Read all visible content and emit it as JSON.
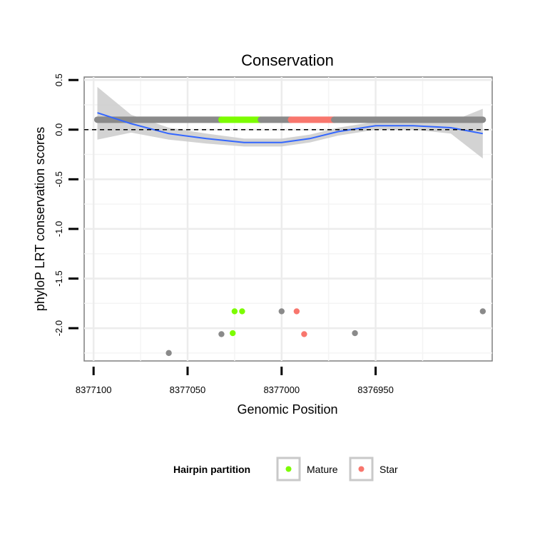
{
  "chart_data": {
    "type": "scatter",
    "title": "Conservation",
    "xlabel": "Genomic Position",
    "ylabel": "phyloP LRT conservation scores",
    "x_reversed": true,
    "xlim": [
      8377105,
      8376888
    ],
    "ylim": [
      -2.33,
      0.53
    ],
    "x_ticks": [
      8377100,
      8377050,
      8377000,
      8376950
    ],
    "x_tick_labels": [
      "8377100",
      "8377050",
      "8377000",
      "8376950"
    ],
    "y_ticks": [
      0.5,
      0.0,
      -0.5,
      -1.0,
      -1.5,
      -2.0
    ],
    "y_tick_labels": [
      "0.5",
      "0.0",
      "-0.5",
      "-1.0",
      "-1.5",
      "-2.0"
    ],
    "reference_line_y": 0.0,
    "grid": true,
    "legend": {
      "title": "Hairpin partition",
      "position": "bottom",
      "entries": [
        {
          "label": "Mature",
          "color": "#7cfc00"
        },
        {
          "label": "Star",
          "color": "#f8766d"
        }
      ]
    },
    "colors": {
      "other": "#8a8a8a",
      "Mature": "#7cfc00",
      "Star": "#f8766d",
      "smooth": "#3366ff",
      "ribbon": "#c8c8c8"
    },
    "conserved_band": {
      "y": 0.1,
      "segments": [
        {
          "partition": "other",
          "x_from": 8377098,
          "x_to": 8377032
        },
        {
          "partition": "Mature",
          "x_from": 8377032,
          "x_to": 8377011
        },
        {
          "partition": "other",
          "x_from": 8377011,
          "x_to": 8376995
        },
        {
          "partition": "Star",
          "x_from": 8376995,
          "x_to": 8376972
        },
        {
          "partition": "other",
          "x_from": 8376972,
          "x_to": 8376893
        }
      ]
    },
    "points": [
      {
        "x": 8377060,
        "y": -2.25,
        "partition": "other"
      },
      {
        "x": 8377032,
        "y": -2.06,
        "partition": "other"
      },
      {
        "x": 8377026,
        "y": -2.05,
        "partition": "Mature"
      },
      {
        "x": 8377025,
        "y": -1.83,
        "partition": "Mature"
      },
      {
        "x": 8377021,
        "y": -1.83,
        "partition": "Mature"
      },
      {
        "x": 8377000,
        "y": -1.83,
        "partition": "other"
      },
      {
        "x": 8376992,
        "y": -1.83,
        "partition": "Star"
      },
      {
        "x": 8376988,
        "y": -2.06,
        "partition": "Star"
      },
      {
        "x": 8376961,
        "y": -2.05,
        "partition": "other"
      },
      {
        "x": 8376893,
        "y": -1.83,
        "partition": "other"
      }
    ],
    "smooth": {
      "x": [
        8377098,
        8377080,
        8377060,
        8377040,
        8377020,
        8377000,
        8376985,
        8376970,
        8376950,
        8376930,
        8376910,
        8376893
      ],
      "y": [
        0.17,
        0.06,
        -0.04,
        -0.09,
        -0.13,
        -0.13,
        -0.09,
        -0.02,
        0.04,
        0.04,
        0.02,
        -0.04
      ],
      "ci_low": [
        -0.1,
        -0.03,
        -0.1,
        -0.14,
        -0.17,
        -0.17,
        -0.13,
        -0.06,
        0.0,
        0.0,
        -0.04,
        -0.29
      ],
      "ci_high": [
        0.43,
        0.15,
        0.02,
        -0.04,
        -0.09,
        -0.09,
        -0.05,
        0.02,
        0.08,
        0.08,
        0.08,
        0.21
      ]
    }
  }
}
